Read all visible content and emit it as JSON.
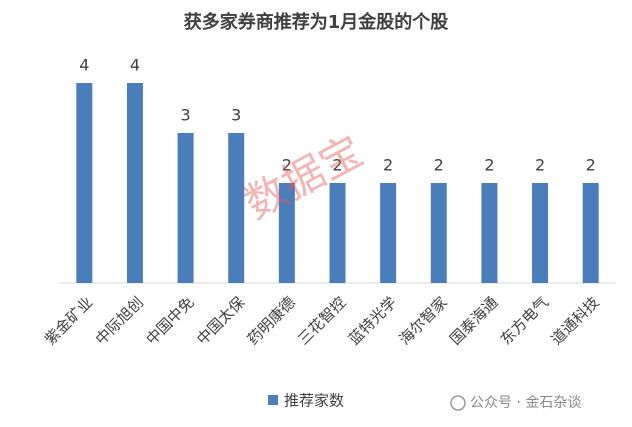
{
  "chart_data": {
    "type": "bar",
    "title": "获多家券商推荐为1月金股的个股",
    "categories": [
      "紫金矿业",
      "中际旭创",
      "中国中免",
      "中国太保",
      "药明康德",
      "三花智控",
      "蓝特光学",
      "海尔智家",
      "国泰海通",
      "东方电气",
      "道通科技"
    ],
    "series": [
      {
        "name": "推荐家数",
        "color": "#4a7ebb",
        "values": [
          4,
          4,
          3,
          3,
          2,
          2,
          2,
          2,
          2,
          2,
          2
        ]
      }
    ],
    "ylim": [
      0,
      4
    ],
    "legend": "bottom",
    "annotations": [
      "数据宝",
      "公众号 · 金石杂谈"
    ]
  }
}
